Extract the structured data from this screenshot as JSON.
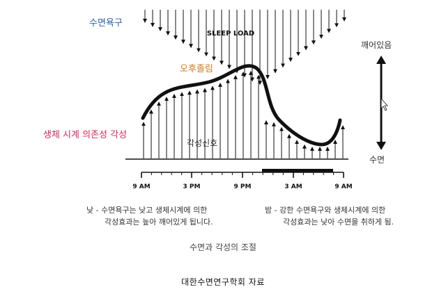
{
  "labels": {
    "sleep_drive": "수면욕구",
    "sleep_load": "SLEEP LOAD",
    "nap": "오후졸림",
    "circadian": "생체 시계 의존성 각성",
    "alert_signal": "각성신호",
    "awake": "깨어있음",
    "sleep": "수면"
  },
  "time_axis": [
    "9 AM",
    "3 PM",
    "9 PM",
    "3 AM",
    "9 AM"
  ],
  "captions": {
    "day_line1": "낮 - 수면욕구는 낮고 생체시계에 의한",
    "day_line2": "각성효과는 높아 깨어있게 됩니다.",
    "night_line1": "밤 - 강한 수면욕구와 생체시계에 의한",
    "night_line2": "각성효과는 낮아 수면을 취하게 됨."
  },
  "title": "수면과 각성의 조절",
  "source": "대한수면연구학회 자료"
}
